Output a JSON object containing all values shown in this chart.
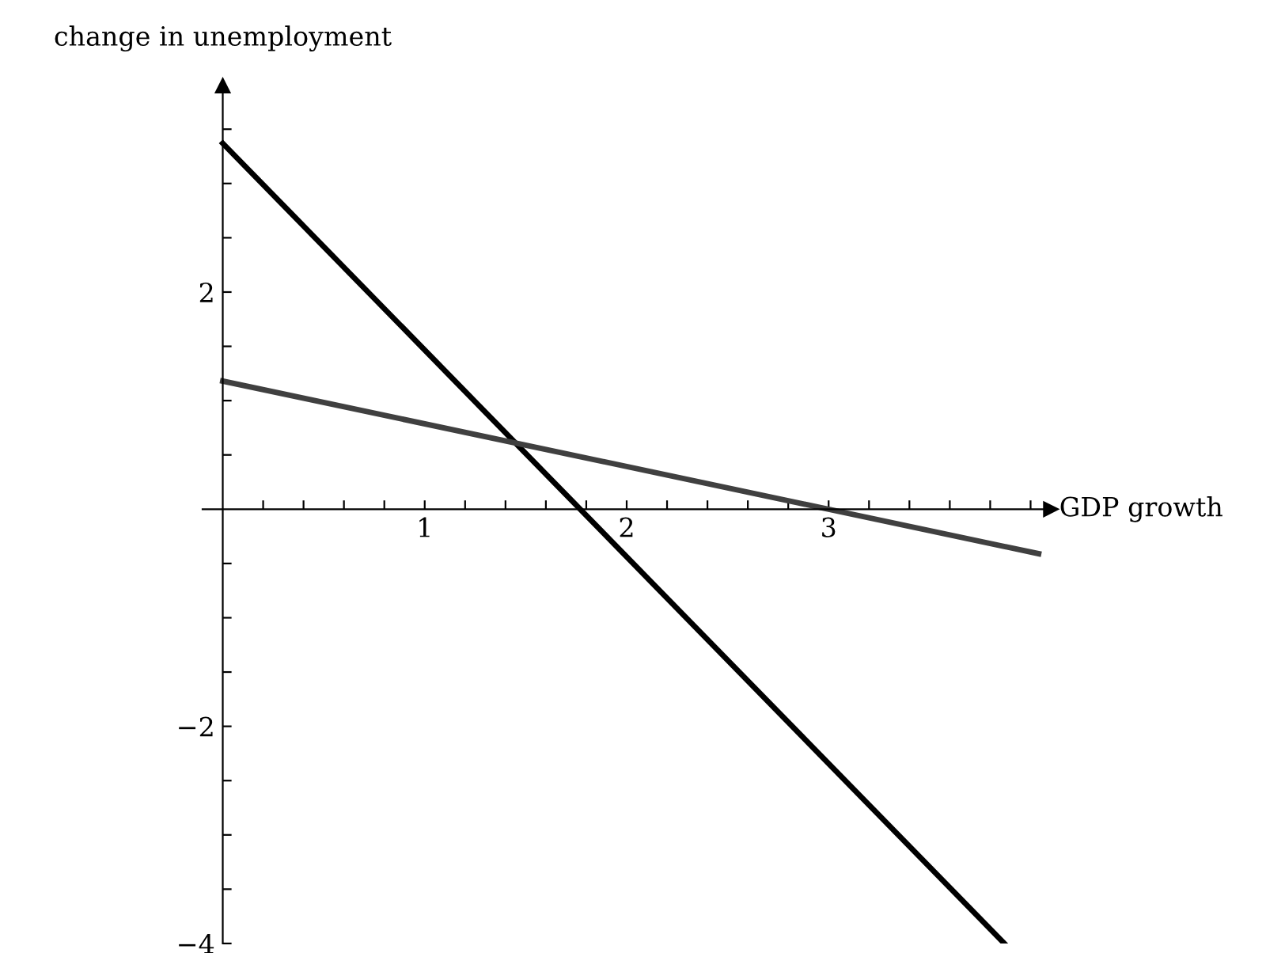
{
  "chart_data": {
    "type": "line",
    "xlabel": "GDP growth",
    "ylabel": "change in unemployment",
    "series": [
      {
        "color": "#000000",
        "x": [
          0,
          3.87
        ],
        "values": [
          3.37,
          -4.0
        ]
      },
      {
        "color": "#404040",
        "x": [
          0,
          4.04
        ],
        "values": [
          1.18,
          -0.41
        ]
      }
    ],
    "xlim": [
      -0.1,
      4.1
    ],
    "ylim": [
      -4,
      3.9
    ],
    "xticks": [
      {
        "value": 0.2,
        "label": null
      },
      {
        "value": 0.4,
        "label": null
      },
      {
        "value": 0.6,
        "label": null
      },
      {
        "value": 0.8,
        "label": null
      },
      1,
      {
        "value": 1.2,
        "label": null
      },
      {
        "value": 1.4,
        "label": null
      },
      {
        "value": 1.6,
        "label": null
      },
      {
        "value": 1.8,
        "label": null
      },
      2,
      {
        "value": 2.2,
        "label": null
      },
      {
        "value": 2.4,
        "label": null
      },
      {
        "value": 2.6,
        "label": null
      },
      {
        "value": 2.8,
        "label": null
      },
      3,
      {
        "value": 3.2,
        "label": null
      },
      {
        "value": 3.4,
        "label": null
      },
      {
        "value": 3.6,
        "label": null
      },
      {
        "value": 3.8,
        "label": null
      },
      {
        "value": 4,
        "label": null
      }
    ],
    "yticks": [
      {
        "value": -4,
        "label": "−4"
      },
      {
        "value": -3.5,
        "label": null
      },
      {
        "value": -3,
        "label": null
      },
      {
        "value": -2.5,
        "label": null
      },
      {
        "value": -2,
        "label": "−2"
      },
      {
        "value": -1.5,
        "label": null
      },
      {
        "value": -1,
        "label": null
      },
      {
        "value": -0.5,
        "label": null
      },
      {
        "value": 0.5,
        "label": null
      },
      {
        "value": 1,
        "label": null
      },
      {
        "value": 1.5,
        "label": null
      },
      2,
      {
        "value": 2.5,
        "label": null
      },
      {
        "value": 3,
        "label": null
      },
      {
        "value": 3.5,
        "label": null
      }
    ],
    "grid": false,
    "legend": false,
    "marker": "none",
    "line_style": "solid"
  }
}
